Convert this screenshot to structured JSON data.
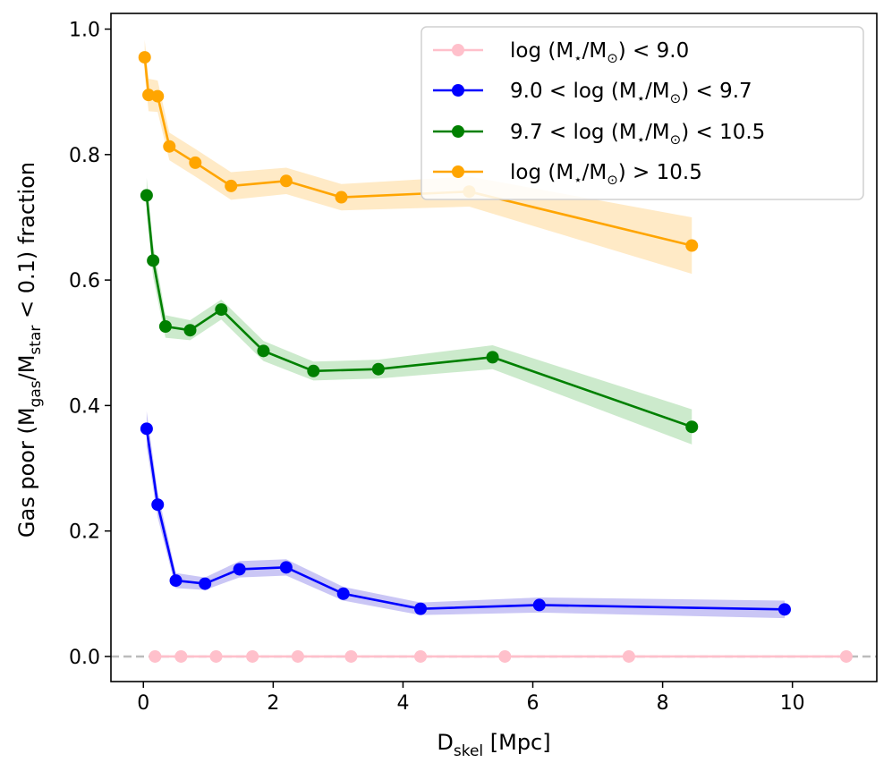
{
  "chart_data": {
    "type": "line",
    "xlabel": "D_skel [Mpc]",
    "ylabel": "Gas poor (M_gas/M_star < 0.1) fraction",
    "xlim": [
      -0.5,
      11.3
    ],
    "ylim": [
      -0.04,
      1.025
    ],
    "xticks": [
      0,
      2,
      4,
      6,
      8,
      10
    ],
    "yticks": [
      0.0,
      0.2,
      0.4,
      0.6,
      0.8,
      1.0
    ],
    "xtick_labels": [
      "0",
      "2",
      "4",
      "6",
      "8",
      "10"
    ],
    "ytick_labels": [
      "0.0",
      "0.2",
      "0.4",
      "0.6",
      "0.8",
      "1.0"
    ],
    "reference_line": {
      "y": 0.0,
      "style": "dashed",
      "color": "#bbbbbb"
    },
    "legend_position": "top-right",
    "series": [
      {
        "name": "log (M⋆/M⊙) < 9.0",
        "color": "#ffc0cb",
        "band_color": "#ffc0cb",
        "x": [
          0.18,
          0.58,
          1.12,
          1.68,
          2.38,
          3.2,
          4.27,
          5.57,
          7.48,
          10.83
        ],
        "y": [
          0,
          0,
          0,
          0,
          0,
          0,
          0,
          0,
          0,
          0
        ],
        "err": [
          0,
          0,
          0,
          0,
          0,
          0,
          0,
          0,
          0,
          0
        ]
      },
      {
        "name": "9.0 < log (M⋆/M⊙) < 9.7",
        "color": "#0000ff",
        "band_color": "#8a80e8",
        "x": [
          0.05,
          0.22,
          0.5,
          0.95,
          1.48,
          2.2,
          3.08,
          4.27,
          6.1,
          9.88
        ],
        "y": [
          0.363,
          0.242,
          0.121,
          0.116,
          0.139,
          0.142,
          0.1,
          0.076,
          0.082,
          0.075
        ],
        "err": [
          0.028,
          0.02,
          0.012,
          0.01,
          0.013,
          0.013,
          0.011,
          0.01,
          0.012,
          0.014
        ]
      },
      {
        "name": "9.7 < log (M⋆/M⊙) < 10.5",
        "color": "#008000",
        "band_color": "#8fd08f",
        "x": [
          0.05,
          0.15,
          0.34,
          0.72,
          1.2,
          1.85,
          2.62,
          3.62,
          5.38,
          8.45
        ],
        "y": [
          0.735,
          0.631,
          0.526,
          0.52,
          0.553,
          0.487,
          0.455,
          0.458,
          0.477,
          0.366
        ],
        "err": [
          0.028,
          0.026,
          0.018,
          0.016,
          0.016,
          0.016,
          0.015,
          0.015,
          0.019,
          0.028
        ]
      },
      {
        "name": "log (M⋆/M⊙) > 10.5",
        "color": "#ffa500",
        "band_color": "#ffd080",
        "x": [
          0.02,
          0.08,
          0.22,
          0.4,
          0.8,
          1.35,
          2.2,
          3.05,
          5.02,
          8.45
        ],
        "y": [
          0.955,
          0.895,
          0.893,
          0.813,
          0.787,
          0.75,
          0.758,
          0.732,
          0.741,
          0.655
        ],
        "err": [
          0.028,
          0.026,
          0.025,
          0.022,
          0.022,
          0.022,
          0.021,
          0.021,
          0.024,
          0.045
        ]
      }
    ]
  },
  "labels": {
    "xlabel_main": "D",
    "xlabel_sub": "skel",
    "xlabel_rest": " [Mpc]",
    "ylabel_a": "Gas poor (M",
    "ylabel_sub1": "gas",
    "ylabel_b": "/M",
    "ylabel_sub2": "star",
    "ylabel_c": " < 0.1) fraction"
  },
  "legend": [
    {
      "a": "log (M",
      "s1": "⋆",
      "b": "/M",
      "s2": "⊙",
      "c": ") < 9.0"
    },
    {
      "a": "9.0 < log (M",
      "s1": "⋆",
      "b": "/M",
      "s2": "⊙",
      "c": ") < 9.7"
    },
    {
      "a": "9.7 < log (M",
      "s1": "⋆",
      "b": "/M",
      "s2": "⊙",
      "c": ") < 10.5"
    },
    {
      "a": "log (M",
      "s1": "⋆",
      "b": "/M",
      "s2": "⊙",
      "c": ") > 10.5"
    }
  ]
}
